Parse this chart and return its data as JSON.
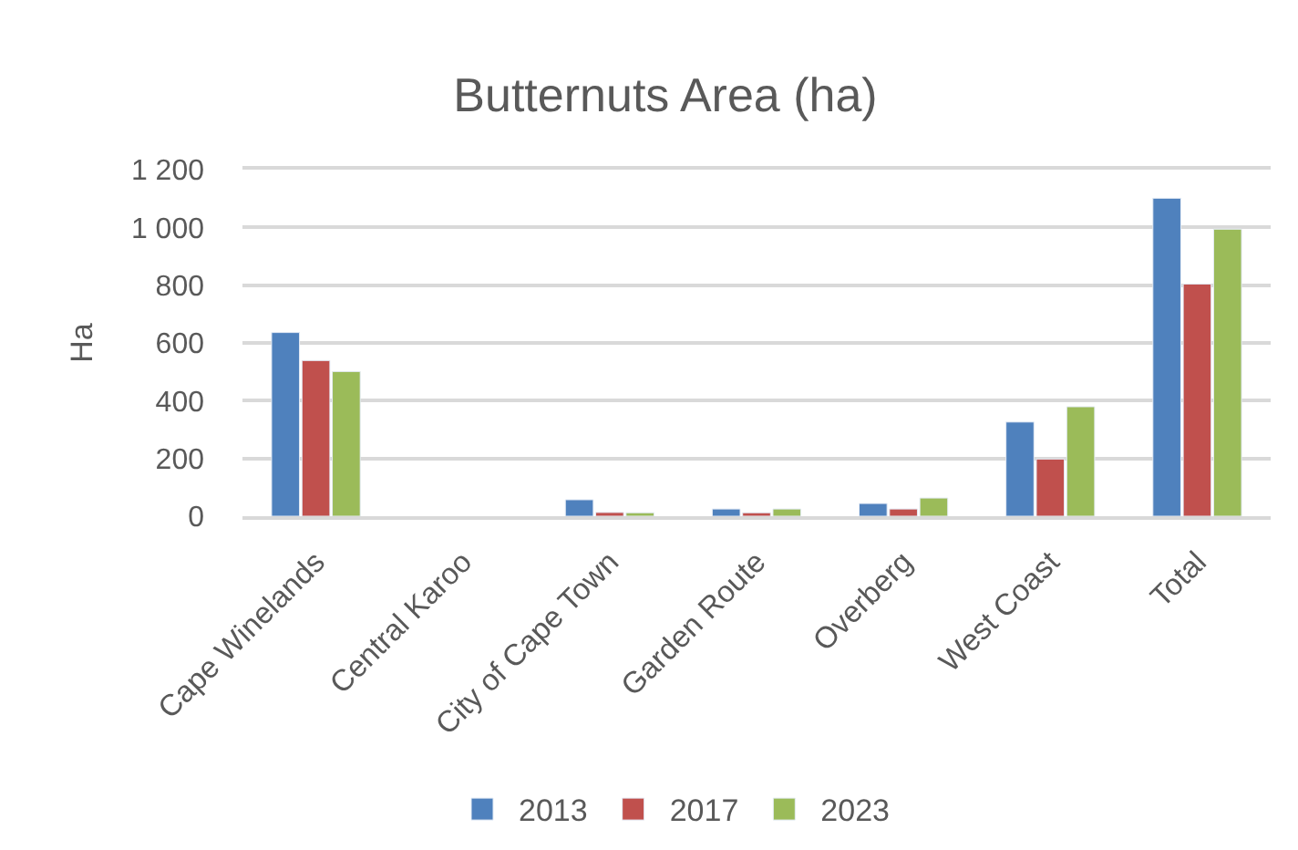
{
  "chart_data": {
    "type": "bar",
    "title": "Butternuts Area (ha)",
    "ylabel": "Ha",
    "categories": [
      "Cape Winelands",
      "Central Karoo",
      "City of Cape Town",
      "Garden Route",
      "Overberg",
      "West Coast",
      "Total"
    ],
    "series": [
      {
        "name": "2013",
        "color": "#4f81bd",
        "values": [
          636,
          null,
          57,
          25,
          44,
          326,
          1101
        ]
      },
      {
        "name": "2017",
        "color": "#c0504d",
        "values": [
          539,
          null,
          13,
          12,
          25,
          198,
          804
        ]
      },
      {
        "name": "2023",
        "color": "#9bbb59",
        "values": [
          501,
          null,
          12,
          25,
          63,
          379,
          994
        ]
      }
    ],
    "ylim": [
      0,
      1200
    ],
    "yticks": [
      0,
      200,
      400,
      600,
      800,
      {
        "value": 1000,
        "label": "1 000"
      },
      {
        "value": 1200,
        "label": "1 200"
      }
    ],
    "grid": "y",
    "legend": "bottom"
  }
}
